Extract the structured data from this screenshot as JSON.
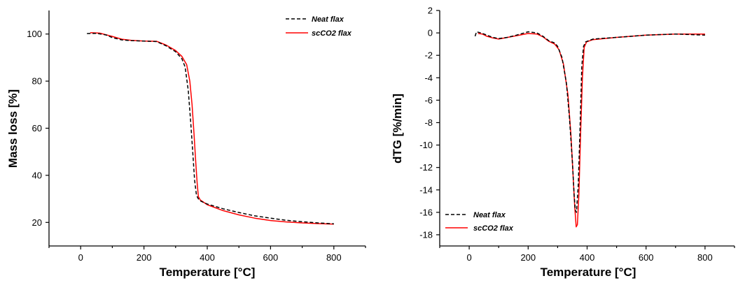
{
  "chart_data": [
    {
      "type": "line",
      "title": "",
      "xlabel": "Temperature [°C]",
      "ylabel": "Mass loss [%]",
      "xlim": [
        -100,
        900
      ],
      "ylim": [
        10,
        110
      ],
      "xticks": [
        0,
        200,
        400,
        600,
        800
      ],
      "yticks": [
        20,
        40,
        60,
        80,
        100
      ],
      "legend": "top-right",
      "series": [
        {
          "name": "Neat flax",
          "color": "#000000",
          "dash": "dashed",
          "points": [
            [
              20,
              100.2
            ],
            [
              50,
              100.3
            ],
            [
              80,
              99.6
            ],
            [
              100,
              98.5
            ],
            [
              130,
              97.5
            ],
            [
              160,
              97.2
            ],
            [
              200,
              97.0
            ],
            [
              240,
              96.8
            ],
            [
              270,
              95.0
            ],
            [
              300,
              92.5
            ],
            [
              320,
              89.5
            ],
            [
              330,
              86
            ],
            [
              340,
              76
            ],
            [
              348,
              62
            ],
            [
              355,
              48
            ],
            [
              360,
              38
            ],
            [
              366,
              31.5
            ],
            [
              372,
              30
            ],
            [
              380,
              29
            ],
            [
              400,
              27.8
            ],
            [
              450,
              25.8
            ],
            [
              500,
              24.2
            ],
            [
              550,
              22.8
            ],
            [
              600,
              21.8
            ],
            [
              650,
              20.9
            ],
            [
              700,
              20.3
            ],
            [
              750,
              19.8
            ],
            [
              800,
              19.4
            ]
          ]
        },
        {
          "name": "scCO2 flax",
          "color": "#ff0000",
          "dash": "solid",
          "points": [
            [
              30,
              100.6
            ],
            [
              60,
              100.4
            ],
            [
              100,
              99.0
            ],
            [
              130,
              97.8
            ],
            [
              160,
              97.3
            ],
            [
              200,
              97.0
            ],
            [
              240,
              96.9
            ],
            [
              270,
              95.3
            ],
            [
              300,
              93
            ],
            [
              320,
              90.5
            ],
            [
              335,
              87
            ],
            [
              345,
              80
            ],
            [
              352,
              70
            ],
            [
              358,
              58
            ],
            [
              364,
              45
            ],
            [
              368,
              37
            ],
            [
              372,
              31
            ],
            [
              378,
              29.5
            ],
            [
              400,
              27.5
            ],
            [
              450,
              25
            ],
            [
              500,
              23.2
            ],
            [
              550,
              21.8
            ],
            [
              600,
              20.8
            ],
            [
              650,
              20.2
            ],
            [
              700,
              19.8
            ],
            [
              750,
              19.5
            ],
            [
              800,
              19.3
            ]
          ]
        }
      ]
    },
    {
      "type": "line",
      "title": "",
      "xlabel": "Temperature [°C]",
      "ylabel": "dTG [%/min]",
      "xlim": [
        -100,
        900
      ],
      "ylim": [
        -19,
        2
      ],
      "xticks": [
        0,
        200,
        400,
        600,
        800
      ],
      "yticks": [
        2,
        0,
        -2,
        -4,
        -6,
        -8,
        -10,
        -12,
        -14,
        -16,
        -18
      ],
      "legend": "bottom-left",
      "series": [
        {
          "name": "Neat flax",
          "color": "#000000",
          "dash": "dashed",
          "points": [
            [
              20,
              -0.3
            ],
            [
              25,
              0.1
            ],
            [
              40,
              0.0
            ],
            [
              60,
              -0.2
            ],
            [
              80,
              -0.4
            ],
            [
              100,
              -0.5
            ],
            [
              130,
              -0.4
            ],
            [
              160,
              -0.2
            ],
            [
              200,
              0.1
            ],
            [
              230,
              0.0
            ],
            [
              250,
              -0.3
            ],
            [
              270,
              -0.7
            ],
            [
              290,
              -0.9
            ],
            [
              300,
              -1.2
            ],
            [
              315,
              -2.2
            ],
            [
              330,
              -4.5
            ],
            [
              340,
              -7.5
            ],
            [
              350,
              -11.5
            ],
            [
              356,
              -14.5
            ],
            [
              360,
              -15.8
            ],
            [
              364,
              -16.0
            ],
            [
              370,
              -13.5
            ],
            [
              376,
              -8.5
            ],
            [
              382,
              -3
            ],
            [
              388,
              -1.2
            ],
            [
              395,
              -0.8
            ],
            [
              420,
              -0.55
            ],
            [
              500,
              -0.4
            ],
            [
              600,
              -0.2
            ],
            [
              700,
              -0.1
            ],
            [
              800,
              -0.2
            ]
          ]
        },
        {
          "name": "scCO2 flax",
          "color": "#ff0000",
          "dash": "solid",
          "points": [
            [
              30,
              -0.05
            ],
            [
              45,
              -0.1
            ],
            [
              60,
              -0.3
            ],
            [
              80,
              -0.45
            ],
            [
              100,
              -0.55
            ],
            [
              130,
              -0.4
            ],
            [
              160,
              -0.25
            ],
            [
              200,
              -0.05
            ],
            [
              230,
              -0.1
            ],
            [
              250,
              -0.35
            ],
            [
              270,
              -0.75
            ],
            [
              290,
              -1.0
            ],
            [
              305,
              -1.5
            ],
            [
              320,
              -2.8
            ],
            [
              335,
              -5.5
            ],
            [
              345,
              -9
            ],
            [
              352,
              -12.5
            ],
            [
              358,
              -15.5
            ],
            [
              363,
              -17.3
            ],
            [
              367,
              -17.1
            ],
            [
              372,
              -14.5
            ],
            [
              378,
              -9
            ],
            [
              384,
              -4
            ],
            [
              390,
              -1.3
            ],
            [
              398,
              -0.8
            ],
            [
              420,
              -0.6
            ],
            [
              500,
              -0.4
            ],
            [
              600,
              -0.2
            ],
            [
              700,
              -0.1
            ],
            [
              800,
              -0.1
            ]
          ]
        }
      ]
    }
  ]
}
